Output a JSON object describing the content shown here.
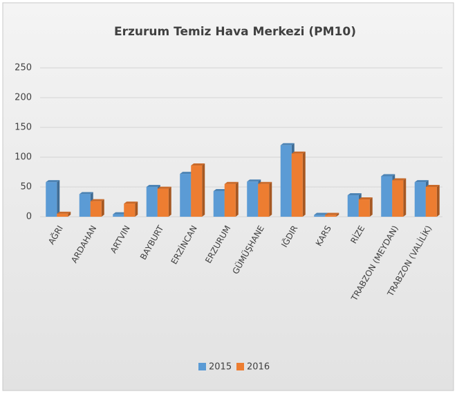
{
  "chart_data": {
    "type": "bar",
    "title": "Erzurum Temiz Hava Merkezi (PM10)",
    "categories": [
      "AĞRI",
      "ARDAHAN",
      "ARTVIN",
      "BAYBURT",
      "ERZİNCAN",
      "ERZURUM",
      "GÜMÜŞHANE",
      "IĞDIR",
      "KARS",
      "RİZE",
      "TRABZON (MEYDAN)",
      "TRABZON (VALİLİK)"
    ],
    "series": [
      {
        "name": "2015",
        "color": "#5b9bd5",
        "values": [
          58,
          38,
          4,
          50,
          72,
          43,
          59,
          120,
          3,
          36,
          68,
          58
        ]
      },
      {
        "name": "2016",
        "color": "#ed7d31",
        "values": [
          5,
          26,
          22,
          47,
          86,
          55,
          55,
          106,
          3,
          29,
          61,
          50
        ]
      }
    ],
    "ylim": [
      0,
      250
    ],
    "yticks": [
      0,
      50,
      100,
      150,
      200,
      250
    ],
    "grid": true,
    "legend": "bottom"
  }
}
